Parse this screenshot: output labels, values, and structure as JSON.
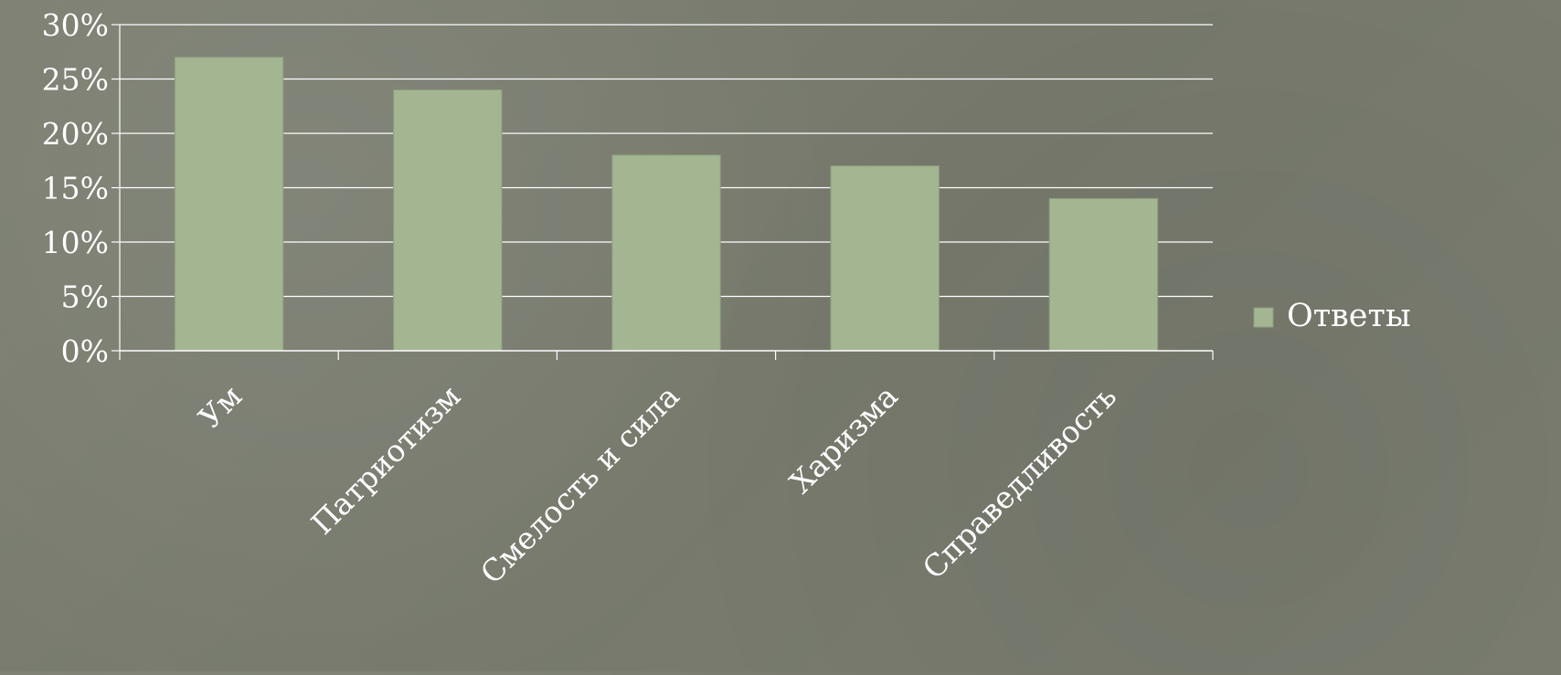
{
  "chart_data": {
    "type": "bar",
    "categories": [
      "Ум",
      "Патриотизм",
      "Смелость и сила",
      "Харизма",
      "Справедливость"
    ],
    "series": [
      {
        "name": "Ответы",
        "values": [
          27,
          24,
          18,
          17,
          14
        ]
      }
    ],
    "y_tick_labels": [
      "0%",
      "5%",
      "10%",
      "15%",
      "20%",
      "25%",
      "30%"
    ],
    "ylim": [
      0,
      30
    ],
    "y_unit": "percent",
    "grid": true,
    "legend_position": "right",
    "colors": {
      "bar": "#a3b591",
      "bar_edge": "#8e9e7e",
      "grid": "#ffffff",
      "axis": "#ffffff",
      "text": "#ffffff",
      "background": "#7a7d70"
    }
  }
}
